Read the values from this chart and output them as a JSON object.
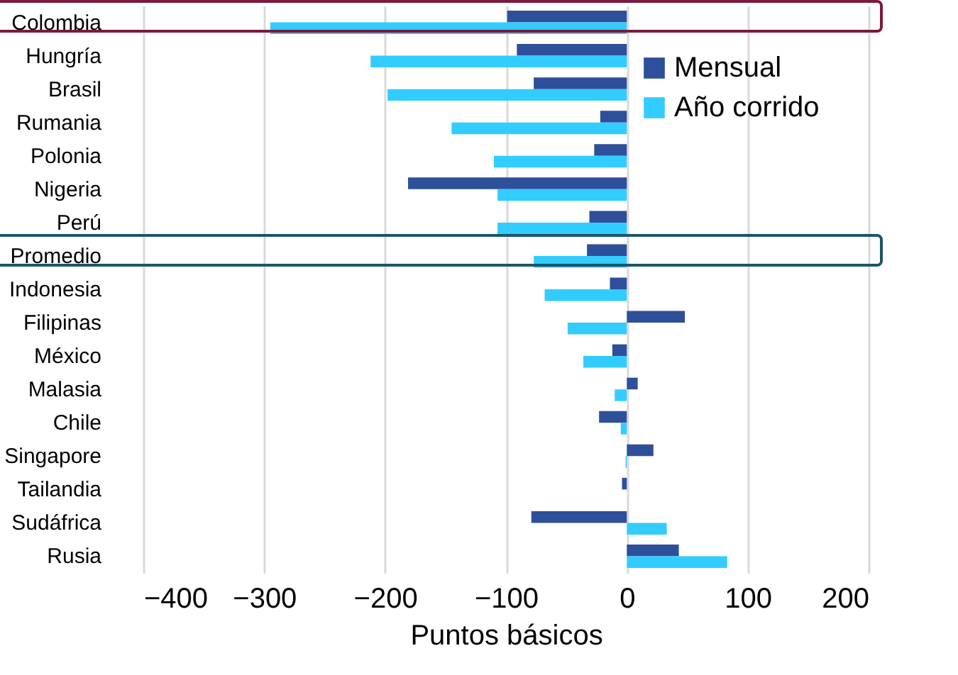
{
  "chart_data": {
    "type": "bar",
    "orientation": "horizontal",
    "xlabel": "Puntos básicos",
    "categories": [
      "Colombia",
      "Hungría",
      "Brasil",
      "Rumania",
      "Polonia",
      "Nigeria",
      "Perú",
      "Promedio",
      "Indonesia",
      "Filipinas",
      "México",
      "Malasia",
      "Chile",
      "Singapore",
      "Tailandia",
      "Sudáfrica",
      "Rusia"
    ],
    "series": [
      {
        "name": "Mensual",
        "color": "#2e4f9a",
        "values": [
          -99,
          -91,
          -77,
          -22,
          -27,
          -181,
          -31,
          -33,
          -14,
          48,
          -12,
          9,
          -23,
          22,
          -4,
          -79,
          43
        ]
      },
      {
        "name": "Año corrido",
        "color": "#33ccff",
        "values": [
          -295,
          -212,
          -198,
          -145,
          -110,
          -107,
          -107,
          -77,
          -68,
          -49,
          -36,
          -10,
          -5,
          -1,
          0,
          33,
          83
        ]
      }
    ],
    "xlim": [
      -400,
      200
    ],
    "xticks": [
      -400,
      -300,
      -200,
      -100,
      0,
      100,
      200
    ],
    "grid": "x",
    "legend": "top right"
  }
}
